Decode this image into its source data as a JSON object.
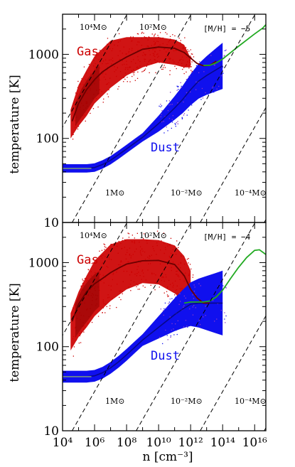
{
  "figure": {
    "xlabel": "n [cm⁻³]",
    "ylabel": "temperature [K]"
  },
  "colors": {
    "gas": "#cc0000",
    "gas_dark": "#8b0000",
    "dust": "#1010ee",
    "dust_dark": "#050560",
    "purple": "#8a3ac8",
    "green": "#22aa22",
    "gas_line": "#6b0000",
    "dust_line": "#88aa88",
    "dashed": "#000000"
  },
  "chart_data": [
    {
      "type": "scatter",
      "panel": "top",
      "metallicity_label": "[M/H] = −5",
      "xlim_log": [
        4,
        16.7
      ],
      "ylim": [
        10,
        3000
      ],
      "yscale": "log",
      "xscale": "log",
      "xticks": [
        {
          "v": 4,
          "l": "10⁴"
        },
        {
          "v": 6,
          "l": "10⁶"
        },
        {
          "v": 8,
          "l": "10⁸"
        },
        {
          "v": 10,
          "l": "10¹⁰"
        },
        {
          "v": 12,
          "l": "10¹²"
        },
        {
          "v": 14,
          "l": "10¹⁴"
        },
        {
          "v": 16,
          "l": "10¹⁶"
        }
      ],
      "yticks": [
        {
          "v": 10,
          "l": "10"
        },
        {
          "v": 100,
          "l": "100"
        },
        {
          "v": 1000,
          "l": "1000"
        }
      ],
      "series": [
        {
          "name": "Gas",
          "color": "#cc0000",
          "upper_log_n": [
            4.5,
            5,
            5.5,
            6,
            7,
            8,
            9,
            10,
            11,
            11.6,
            12
          ],
          "upper_T": [
            220,
            430,
            650,
            950,
            1450,
            1600,
            1600,
            1600,
            1500,
            1300,
            900
          ],
          "lower_log_n": [
            4.5,
            5,
            5.5,
            6,
            7,
            8,
            9,
            10,
            11,
            11.6,
            12
          ],
          "lower_T": [
            100,
            140,
            185,
            260,
            400,
            560,
            700,
            800,
            750,
            700,
            700
          ],
          "mean_log_n": [
            4.6,
            5,
            5.5,
            6,
            6.5,
            7,
            7.5,
            8,
            9,
            10,
            11,
            11.6,
            12,
            12.4,
            12.8,
            13.2,
            13.6
          ],
          "mean_T": [
            160,
            260,
            380,
            500,
            620,
            720,
            820,
            930,
            1150,
            1220,
            1180,
            1050,
            900,
            780,
            730,
            740,
            830
          ]
        },
        {
          "name": "Dust",
          "color": "#1010ee",
          "mean_log_n": [
            4,
            5,
            5.5,
            6,
            6.5,
            7,
            7.5,
            8,
            8.5,
            9,
            10,
            11,
            11.5,
            12,
            12.5,
            13,
            13.5,
            14
          ],
          "mean_T": [
            44,
            44,
            44,
            45,
            49,
            55,
            64,
            75,
            88,
            103,
            150,
            230,
            290,
            380,
            480,
            560,
            640,
            730
          ],
          "half_width_dex": 0.05
        },
        {
          "name": "Gas-dust coupled",
          "color": "#22aa22",
          "mean_log_n": [
            12.8,
            13.2,
            13.6,
            14,
            14.5,
            15,
            15.5,
            16,
            16.5,
            16.7
          ],
          "mean_T": [
            740,
            740,
            790,
            880,
            1050,
            1250,
            1480,
            1750,
            2050,
            2250
          ]
        }
      ],
      "jeans_mass_lines": [
        {
          "label": "10⁴M⊙",
          "log_n_at_T10": 0.6
        },
        {
          "label": "10²M⊙",
          "log_n_at_T10": 4.6
        },
        {
          "label": "1M⊙",
          "log_n_at_T10": 8.6
        },
        {
          "label": "10⁻²M⊙",
          "log_n_at_T10": 12.6
        },
        {
          "label": "10⁻⁴M⊙",
          "log_n_at_T10": 16.6
        }
      ]
    },
    {
      "type": "scatter",
      "panel": "bottom",
      "metallicity_label": "[M/H] = −4",
      "xlim_log": [
        4,
        16.7
      ],
      "ylim": [
        10,
        3000
      ],
      "yscale": "log",
      "xscale": "log",
      "xticks": [
        {
          "v": 4,
          "l": "10⁴"
        },
        {
          "v": 6,
          "l": "10⁶"
        },
        {
          "v": 8,
          "l": "10⁸"
        },
        {
          "v": 10,
          "l": "10¹⁰"
        },
        {
          "v": 12,
          "l": "10¹²"
        },
        {
          "v": 14,
          "l": "10¹⁴"
        },
        {
          "v": 16,
          "l": "10¹⁶"
        }
      ],
      "yticks": [
        {
          "v": 10,
          "l": "10"
        },
        {
          "v": 100,
          "l": "100"
        },
        {
          "v": 1000,
          "l": "1000"
        }
      ],
      "series": [
        {
          "name": "Gas",
          "color": "#cc0000",
          "upper_log_n": [
            4.5,
            5,
            5.5,
            6,
            7,
            8,
            9,
            10,
            11,
            11.6,
            12
          ],
          "upper_T": [
            250,
            450,
            700,
            1050,
            1650,
            1900,
            1900,
            1850,
            1600,
            1200,
            800
          ],
          "lower_log_n": [
            4.5,
            5,
            5.5,
            6,
            7,
            8,
            9,
            10,
            11,
            11.6,
            12
          ],
          "lower_T": [
            90,
            130,
            170,
            230,
            350,
            480,
            570,
            550,
            430,
            350,
            320
          ],
          "mean_log_n": [
            4.6,
            5,
            5.5,
            6,
            6.5,
            7,
            7.5,
            8,
            9,
            10,
            11,
            11.6,
            12,
            12.4,
            12.8,
            13.2
          ],
          "mean_T": [
            200,
            320,
            450,
            560,
            650,
            760,
            860,
            960,
            1050,
            1060,
            950,
            700,
            480,
            380,
            330,
            330
          ]
        },
        {
          "name": "Dust",
          "color": "#1010ee",
          "mean_log_n": [
            4,
            5,
            5.5,
            6,
            6.5,
            7,
            7.5,
            8,
            8.5,
            9,
            10,
            11,
            11.5,
            12,
            12.5,
            13,
            13.5,
            14
          ],
          "mean_T": [
            44,
            44,
            44,
            45,
            49,
            56,
            66,
            80,
            98,
            120,
            170,
            240,
            280,
            320,
            330,
            330,
            330,
            330
          ],
          "half_width_dex": 0.07
        },
        {
          "name": "Gas-dust coupled",
          "color": "#22aa22",
          "mean_log_n": [
            11.6,
            12,
            12.4,
            12.8,
            13.2,
            13.6,
            14,
            14.5,
            15,
            15.5,
            16,
            16.3,
            16.7
          ],
          "mean_T": [
            330,
            340,
            340,
            340,
            350,
            390,
            470,
            650,
            880,
            1150,
            1400,
            1420,
            1250
          ]
        }
      ],
      "jeans_mass_lines": [
        {
          "label": "10⁴M⊙",
          "log_n_at_T10": 0.6
        },
        {
          "label": "10²M⊙",
          "log_n_at_T10": 4.6
        },
        {
          "label": "1M⊙",
          "log_n_at_T10": 8.6
        },
        {
          "label": "10⁻²M⊙",
          "log_n_at_T10": 12.6
        },
        {
          "label": "10⁻⁴M⊙",
          "log_n_at_T10": 16.6
        }
      ]
    }
  ]
}
